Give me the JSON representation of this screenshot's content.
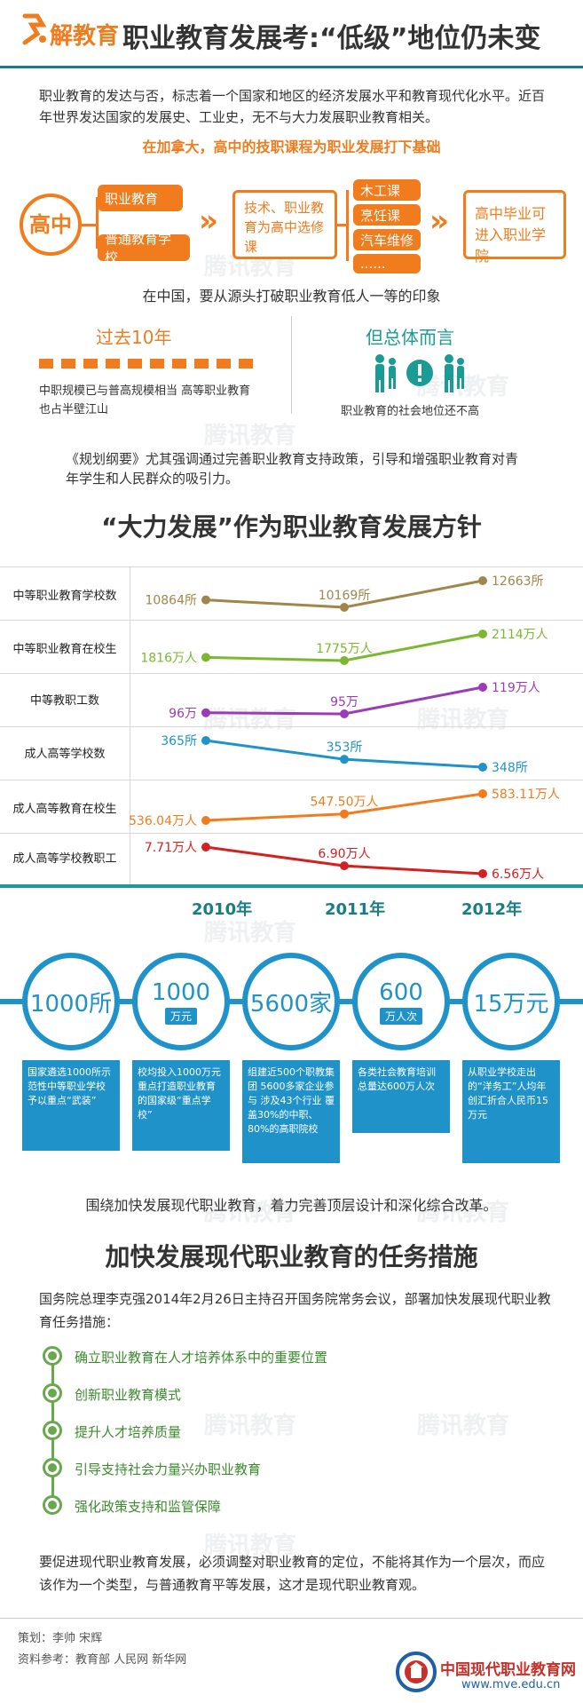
{
  "header": {
    "logo_text": "解教育",
    "title": "职业教育发展考:“低级”地位仍未变"
  },
  "intro": "职业教育的发达与否，标志着一个国家和地区的经济发展水平和教育现代化水平。近百年世界发达国家的发展史、工业史，无不与大力发展职业教育相关。",
  "canada": {
    "heading": "在加拿大，高中的技职课程为职业发展打下基础",
    "circle": "高中",
    "branch_top": "职业教育",
    "branch_bottom": "普通教育学校",
    "middle": "技术、职业教育为高中选修课",
    "courses": [
      "木工课",
      "烹饪课",
      "汽车维修",
      "......"
    ],
    "result": "高中毕业可进入职业学院"
  },
  "china": {
    "intro": "在中国，要从源头打破职业教育低人一等的印象",
    "left_title": "过去10年",
    "left_text": "中职规模已与普高规模相当 高等职业教育也占半壁江山",
    "right_title": "但总体而言",
    "right_text": "职业教育的社会地位还不高",
    "plan_text": "《规划纲要》尤其强调通过完善职业教育支持政策，引导和增强职业教育对青年学生和人民群众的吸引力。"
  },
  "chart_data": {
    "type": "line",
    "title": "“大力发展”作为职业教育发展方针",
    "x": [
      "2010年",
      "2011年",
      "2012年"
    ],
    "series": [
      {
        "name": "中等职业教育学校数",
        "values": [
          10864,
          10169,
          12663
        ],
        "labels": [
          "10864所",
          "10169所",
          "12663所"
        ],
        "color": "#a0864a"
      },
      {
        "name": "中等职业教育在校生",
        "values": [
          1816,
          1775,
          2114
        ],
        "labels": [
          "1816万人",
          "1775万人",
          "2114万人"
        ],
        "color": "#7cb82f"
      },
      {
        "name": "中等教职工数",
        "values": [
          96,
          95,
          119
        ],
        "labels": [
          "96万",
          "95万",
          "119万人"
        ],
        "color": "#9b3bb8"
      },
      {
        "name": "成人高等学校数",
        "values": [
          365,
          353,
          348
        ],
        "labels": [
          "365所",
          "353所",
          "348所"
        ],
        "color": "#1f93c9"
      },
      {
        "name": "成人高等教育在校生",
        "values": [
          536.04,
          547.5,
          583.11
        ],
        "labels": [
          "536.04万人",
          "547.50万人",
          "583.11万人"
        ],
        "color": "#f07c1e"
      },
      {
        "name": "成人高等学校教职工",
        "values": [
          7.71,
          6.9,
          6.56
        ],
        "labels": [
          "7.71万人",
          "6.90万人",
          "6.56万人"
        ],
        "color": "#d42020"
      }
    ]
  },
  "stats": [
    {
      "num": "1000所",
      "unit": "",
      "desc": "国家遴选1000所示范性中等职业学校予以重点“武装”"
    },
    {
      "num": "1000",
      "unit": "万元",
      "desc": "校均投入1000万元重点打造职业教育的国家级“重点学校”"
    },
    {
      "num": "5600家",
      "unit": "",
      "desc": "组建近500个职教集团 5600多家企业参与 涉及43个行业 覆盖30%的中职、80%的高职院校"
    },
    {
      "num": "600",
      "unit": "万人次",
      "desc": "各类社会教育培训总量达600万人次"
    },
    {
      "num": "15万元",
      "unit": "",
      "desc": "从职业学校走出的“洋务工”人均年创汇折合人民币15万元"
    }
  ],
  "reform": "围绕加快发展现代职业教育，着力完善顶层设计和深化综合改革。",
  "tasks": {
    "title": "加快发展现代职业教育的任务措施",
    "intro": "国务院总理李克强2014年2月26日主持召开国务院常务会议，部署加快发展现代职业教育任务措施：",
    "items": [
      "确立职业教育在人才培养体系中的重要位置",
      "创新职业教育模式",
      "提升人才培养质量",
      "引导支持社会力量兴办职业教育",
      "强化政策支持和监管保障"
    ],
    "conclusion": "要促进现代职业教育发展，必须调整对职业教育的定位，不能将其作为一个层次，而应该作为一个类型，与普通教育平等发展，这才是现代职业教育观。"
  },
  "footer": {
    "planner": "策划：李帅 宋辉",
    "sources": "资料参考：教育部 人民网 新华网",
    "brand": "中国现代职业教育网",
    "url": "www.mve.edu.cn"
  },
  "watermark": "腾讯教育"
}
